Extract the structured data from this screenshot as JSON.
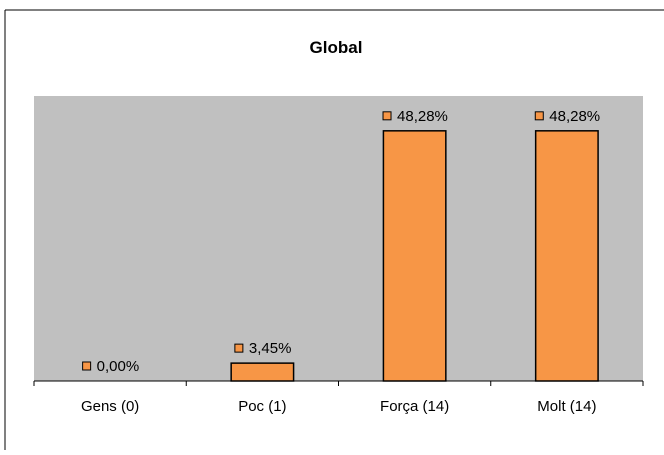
{
  "chart_data": {
    "type": "bar",
    "title": "Global",
    "xlabel": "",
    "ylabel": "",
    "categories": [
      "Gens (0)",
      "Poc (1)",
      "Força (14)",
      "Molt (14)"
    ],
    "values": [
      0.0,
      3.45,
      48.28,
      48.28
    ],
    "data_labels": [
      "0,00%",
      "3,45%",
      "48,28%",
      "48,28%"
    ],
    "ylim": [
      0,
      55
    ],
    "grid": false,
    "legend": "none",
    "colors": {
      "bar_fill": "#f79646",
      "bar_stroke": "#000000",
      "plot_background": "#c0c0c0",
      "text": "#000000"
    }
  }
}
